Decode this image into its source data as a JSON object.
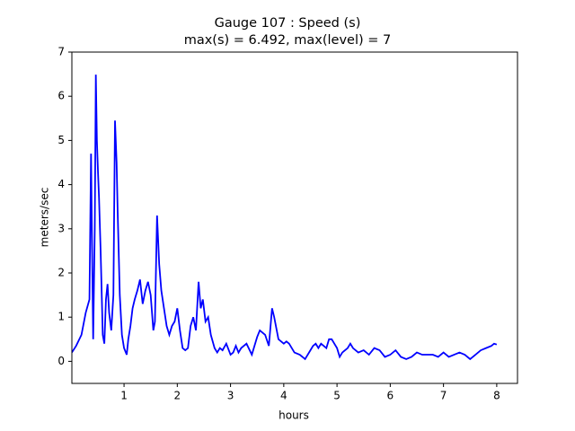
{
  "chart_data": {
    "type": "line",
    "title": [
      "Gauge 107 : Speed (s)",
      "max(s) =   6.492,    max(level) = 7"
    ],
    "x_label": "hours",
    "y_label": "meters/sec",
    "xlim": [
      0.02,
      8.39
    ],
    "ylim": [
      -0.5,
      7
    ],
    "xticks": [
      1,
      2,
      3,
      4,
      5,
      6,
      7,
      8
    ],
    "yticks": [
      0,
      1,
      2,
      3,
      4,
      5,
      6,
      7
    ],
    "grid": false,
    "series": [
      {
        "name": "Speed",
        "color": "#0000ff",
        "x": [
          0.02,
          0.1,
          0.2,
          0.28,
          0.35,
          0.38,
          0.4,
          0.42,
          0.45,
          0.47,
          0.49,
          0.51,
          0.53,
          0.56,
          0.6,
          0.63,
          0.66,
          0.69,
          0.72,
          0.76,
          0.8,
          0.83,
          0.86,
          0.88,
          0.92,
          0.96,
          1.0,
          1.05,
          1.08,
          1.12,
          1.16,
          1.2,
          1.25,
          1.3,
          1.35,
          1.4,
          1.45,
          1.5,
          1.55,
          1.58,
          1.62,
          1.66,
          1.7,
          1.75,
          1.8,
          1.85,
          1.9,
          1.95,
          2.0,
          2.05,
          2.1,
          2.15,
          2.2,
          2.25,
          2.3,
          2.35,
          2.4,
          2.44,
          2.48,
          2.53,
          2.58,
          2.63,
          2.7,
          2.75,
          2.8,
          2.85,
          2.92,
          3.0,
          3.05,
          3.1,
          3.15,
          3.2,
          3.3,
          3.4,
          3.5,
          3.55,
          3.65,
          3.72,
          3.78,
          3.82,
          3.9,
          4.0,
          4.05,
          4.1,
          4.2,
          4.3,
          4.35,
          4.4,
          4.5,
          4.55,
          4.6,
          4.65,
          4.7,
          4.8,
          4.85,
          4.9,
          5.0,
          5.05,
          5.1,
          5.2,
          5.25,
          5.3,
          5.4,
          5.5,
          5.6,
          5.7,
          5.8,
          5.9,
          6.0,
          6.1,
          6.2,
          6.3,
          6.4,
          6.5,
          6.6,
          6.7,
          6.8,
          6.9,
          7.0,
          7.1,
          7.3,
          7.4,
          7.5,
          7.6,
          7.7,
          7.8,
          7.9,
          7.95,
          8.0
        ],
        "values": [
          0.2,
          0.35,
          0.6,
          1.1,
          1.4,
          4.7,
          2.5,
          0.5,
          3,
          6.49,
          5,
          4.3,
          3.7,
          2.5,
          0.6,
          0.4,
          1.4,
          1.75,
          1.1,
          0.7,
          1.5,
          5.45,
          4.5,
          3.4,
          1.5,
          0.6,
          0.3,
          0.15,
          0.5,
          0.8,
          1.2,
          1.4,
          1.6,
          1.85,
          1.3,
          1.6,
          1.8,
          1.5,
          0.7,
          0.9,
          3.3,
          2.2,
          1.6,
          1.2,
          0.8,
          0.6,
          0.8,
          0.9,
          1.2,
          0.7,
          0.3,
          0.25,
          0.3,
          0.8,
          1.0,
          0.7,
          1.8,
          1.2,
          1.4,
          0.9,
          1.0,
          0.6,
          0.3,
          0.2,
          0.3,
          0.25,
          0.4,
          0.15,
          0.2,
          0.35,
          0.2,
          0.3,
          0.4,
          0.15,
          0.55,
          0.7,
          0.6,
          0.35,
          1.2,
          1.0,
          0.5,
          0.4,
          0.45,
          0.4,
          0.2,
          0.15,
          0.1,
          0.05,
          0.25,
          0.35,
          0.4,
          0.3,
          0.4,
          0.3,
          0.5,
          0.5,
          0.3,
          0.1,
          0.2,
          0.3,
          0.4,
          0.3,
          0.2,
          0.25,
          0.15,
          0.3,
          0.25,
          0.1,
          0.15,
          0.25,
          0.1,
          0.05,
          0.1,
          0.2,
          0.15,
          0.15,
          0.15,
          0.1,
          0.2,
          0.1,
          0.2,
          0.15,
          0.05,
          0.15,
          0.25,
          0.3,
          0.35,
          0.4,
          0.38
        ]
      }
    ]
  }
}
